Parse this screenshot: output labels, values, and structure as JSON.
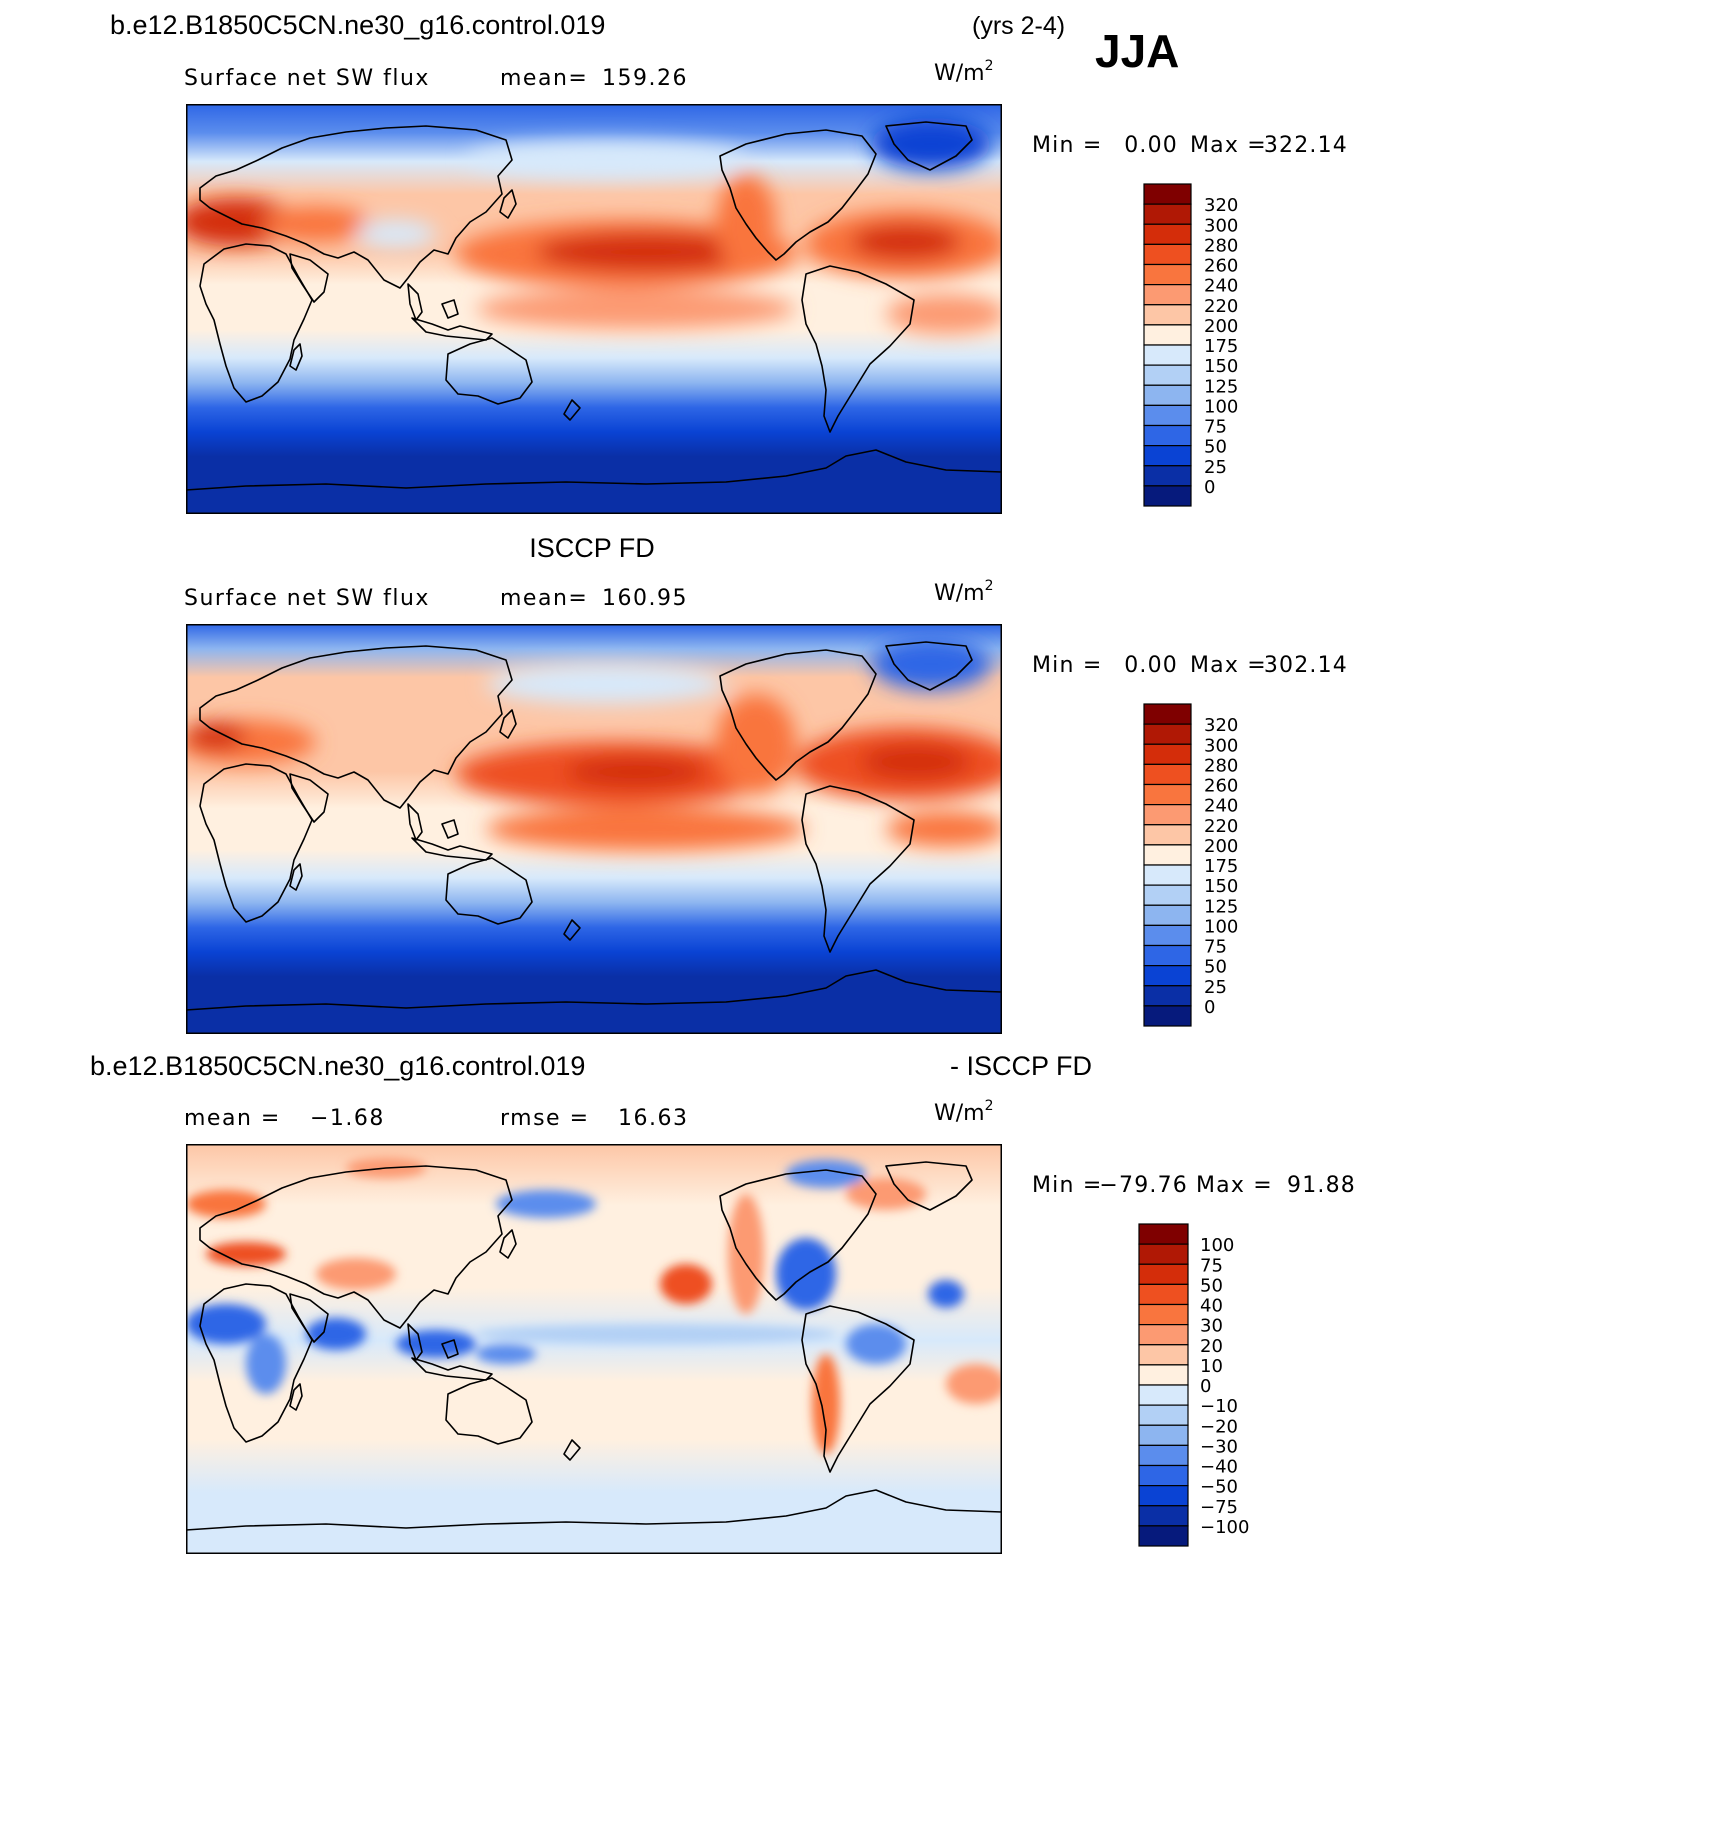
{
  "header": {
    "case_name": "b.e12.B1850C5CN.ne30_g16.control.019",
    "years": "(yrs 2-4)",
    "season": "JJA"
  },
  "panels": [
    {
      "id": "model",
      "title": "",
      "variable": "Surface net SW flux",
      "stat1_label": "mean=",
      "stat1_value": "159.26",
      "stat2_label": "",
      "stat2_value": "",
      "units_base": "W/m",
      "units_exp": "2",
      "min_label": "Min =",
      "min_value": "0.00",
      "max_label": "Max =",
      "max_value": "322.14",
      "levels": [
        "320",
        "300",
        "280",
        "260",
        "240",
        "220",
        "200",
        "175",
        "150",
        "125",
        "100",
        "75",
        "50",
        "25",
        "0"
      ],
      "colors": [
        "#7f0000",
        "#b01805",
        "#d42d0a",
        "#ee5020",
        "#f9753e",
        "#fc9a72",
        "#fdc6a6",
        "#fff0e0",
        "#d7e9fb",
        "#b2d0f5",
        "#8db5f0",
        "#5b8ded",
        "#2e66e6",
        "#0a43d4",
        "#0a2fa6",
        "#061a7c"
      ]
    },
    {
      "id": "obs",
      "title": "ISCCP FD",
      "variable": "Surface net SW flux",
      "stat1_label": "mean=",
      "stat1_value": "160.95",
      "stat2_label": "",
      "stat2_value": "",
      "units_base": "W/m",
      "units_exp": "2",
      "min_label": "Min =",
      "min_value": "0.00",
      "max_label": "Max =",
      "max_value": "302.14",
      "levels": [
        "320",
        "300",
        "280",
        "260",
        "240",
        "220",
        "200",
        "175",
        "150",
        "125",
        "100",
        "75",
        "50",
        "25",
        "0"
      ],
      "colors": [
        "#7f0000",
        "#b01805",
        "#d42d0a",
        "#ee5020",
        "#f9753e",
        "#fc9a72",
        "#fdc6a6",
        "#fff0e0",
        "#d7e9fb",
        "#b2d0f5",
        "#8db5f0",
        "#5b8ded",
        "#2e66e6",
        "#0a43d4",
        "#0a2fa6",
        "#061a7c"
      ]
    },
    {
      "id": "diff",
      "title_left": "b.e12.B1850C5CN.ne30_g16.control.019",
      "title_right": "- ISCCP FD",
      "variable": "",
      "stat1_label": "mean =",
      "stat1_value": "−1.68",
      "stat2_label": "rmse =",
      "stat2_value": "16.63",
      "units_base": "W/m",
      "units_exp": "2",
      "min_label": "Min =",
      "min_value": "−79.76",
      "max_label": "Max =",
      "max_value": "91.88",
      "levels": [
        "100",
        "75",
        "50",
        "40",
        "30",
        "20",
        "10",
        "0",
        "−10",
        "−20",
        "−30",
        "−40",
        "−50",
        "−75",
        "−100"
      ],
      "colors": [
        "#7f0000",
        "#b01805",
        "#d42d0a",
        "#ee5020",
        "#f9753e",
        "#fc9a72",
        "#fdc6a6",
        "#fff0e0",
        "#d7e9fb",
        "#b2d0f5",
        "#8db5f0",
        "#5b8ded",
        "#2e66e6",
        "#0a43d4",
        "#0a2fa6",
        "#061a7c"
      ]
    }
  ]
}
